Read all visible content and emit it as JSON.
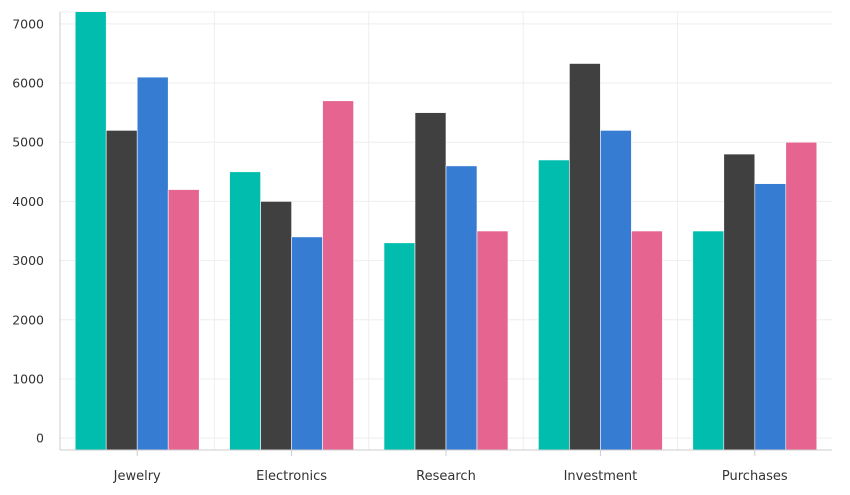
{
  "chart_data": {
    "type": "bar",
    "categories": [
      "Jewelry",
      "Electronics",
      "Research",
      "Investment",
      "Purchases"
    ],
    "series": [
      {
        "values": [
          7300,
          4500,
          3300,
          4700,
          3500
        ],
        "color": "#00BDAE"
      },
      {
        "values": [
          5200,
          4000,
          5500,
          6330,
          4800
        ],
        "color": "#404041"
      },
      {
        "values": [
          6100,
          3400,
          4600,
          5200,
          4300
        ],
        "color": "#357CD2"
      },
      {
        "values": [
          4200,
          5700,
          3500,
          3500,
          5000
        ],
        "color": "#E56590"
      }
    ],
    "y_ticks": [
      "0",
      "1000",
      "2000",
      "3000",
      "4000",
      "5000",
      "6000",
      "7000"
    ],
    "ylim": [
      -200,
      7200
    ],
    "grid": true,
    "title": "",
    "xlabel": "",
    "ylabel": ""
  }
}
